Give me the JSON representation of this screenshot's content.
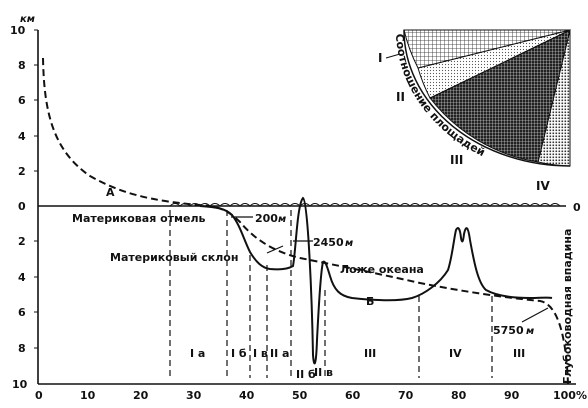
{
  "axes": {
    "y_unit": "км",
    "y_ticks_above": [
      "10",
      "8",
      "6",
      "4",
      "2",
      "0"
    ],
    "y_ticks_below": [
      "2",
      "4",
      "6",
      "8",
      "10"
    ],
    "x_ticks": [
      "0",
      "10",
      "20",
      "30",
      "40",
      "50",
      "60",
      "70",
      "80",
      "90",
      "100"
    ],
    "x_unit": "%",
    "right_zero": "0"
  },
  "labels": {
    "curve_a": "А",
    "curve_b": "Б",
    "shelf": "Материковая отмель",
    "depth_200": "200",
    "slope": "Материковый склон",
    "depth_2450": "2450",
    "ocean_floor": "Ложе океана",
    "depth_5750": "5750",
    "unit_m": "м",
    "trench": "Глубоководная впадина"
  },
  "zones": [
    "I а",
    "I б",
    "I в",
    "II а",
    "II б",
    "II в",
    "III",
    "IV",
    "III"
  ],
  "inset": {
    "title": "Соотношение площадей",
    "sectors": [
      "I",
      "II",
      "III",
      "IV"
    ]
  }
}
